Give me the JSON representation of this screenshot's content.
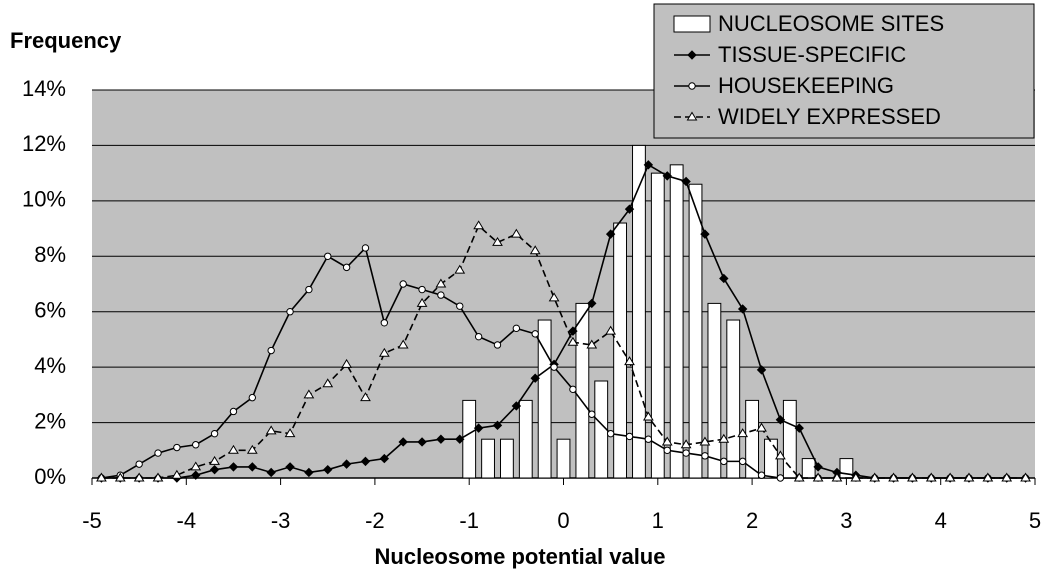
{
  "chart_data": {
    "type": "combo",
    "title": "Frequency",
    "x_label": "Nucleosome potential value",
    "xlim": [
      -5,
      5
    ],
    "xticks": [
      -5,
      -4,
      -3,
      -2,
      -1,
      0,
      1,
      2,
      3,
      4,
      5
    ],
    "ylim": [
      0,
      14
    ],
    "yticks": [
      {
        "value": 0,
        "label": "0%"
      },
      {
        "value": 2,
        "label": "2%"
      },
      {
        "value": 4,
        "label": "4%"
      },
      {
        "value": 6,
        "label": "6%"
      },
      {
        "value": 8,
        "label": "8%"
      },
      {
        "value": 10,
        "label": "10%"
      },
      {
        "value": 12,
        "label": "12%"
      },
      {
        "value": 14,
        "label": "14%"
      }
    ],
    "grid": true,
    "legend": "top-right",
    "x": [
      -4.9,
      -4.7,
      -4.5,
      -4.3,
      -4.1,
      -3.9,
      -3.7,
      -3.5,
      -3.3,
      -3.1,
      -2.9,
      -2.7,
      -2.5,
      -2.3,
      -2.1,
      -1.9,
      -1.7,
      -1.5,
      -1.3,
      -1.1,
      -0.9,
      -0.7,
      -0.5,
      -0.3,
      -0.1,
      0.1,
      0.3,
      0.5,
      0.7,
      0.9,
      1.1,
      1.3,
      1.5,
      1.7,
      1.9,
      2.1,
      2.3,
      2.5,
      2.7,
      2.9,
      3.1,
      3.3,
      3.5,
      3.7,
      3.9,
      4.1,
      4.3,
      4.5,
      4.7,
      4.9
    ],
    "series": [
      {
        "name": "NUCLEOSOME SITES",
        "type": "bar",
        "color": "#ffffff",
        "x": [
          -1.0,
          -0.8,
          -0.6,
          -0.4,
          -0.2,
          0.0,
          0.2,
          0.4,
          0.6,
          0.8,
          1.0,
          1.2,
          1.4,
          1.6,
          1.8,
          2.0,
          2.2,
          2.4,
          2.6,
          2.8,
          3.0
        ],
        "values": [
          2.8,
          1.4,
          1.4,
          2.8,
          5.7,
          1.4,
          6.3,
          3.5,
          9.2,
          12.0,
          11.0,
          11.3,
          10.6,
          6.3,
          5.7,
          2.8,
          1.4,
          2.8,
          0.7,
          0,
          0.7
        ]
      },
      {
        "name": "TISSUE-SPECIFIC",
        "type": "line",
        "color": "#000000",
        "marker": "diamond",
        "marker_fill": "#000000",
        "dashed": false,
        "values": [
          0,
          0,
          0,
          0,
          0,
          0.1,
          0.3,
          0.4,
          0.4,
          0.2,
          0.4,
          0.2,
          0.3,
          0.5,
          0.6,
          0.7,
          1.3,
          1.3,
          1.4,
          1.4,
          1.8,
          1.9,
          2.6,
          3.6,
          4.1,
          5.3,
          6.3,
          8.8,
          9.7,
          11.3,
          10.9,
          10.7,
          8.8,
          7.2,
          6.1,
          3.9,
          2.1,
          1.8,
          0.4,
          0.2,
          0.1,
          0,
          0,
          0,
          0,
          0,
          0,
          0,
          0,
          0
        ]
      },
      {
        "name": "HOUSEKEEPING",
        "type": "line",
        "color": "#000000",
        "marker": "circle",
        "marker_fill": "#ffffff",
        "dashed": false,
        "values": [
          0,
          0.1,
          0.5,
          0.9,
          1.1,
          1.2,
          1.6,
          2.4,
          2.9,
          4.6,
          6.0,
          6.8,
          8.0,
          7.6,
          8.3,
          5.6,
          7.0,
          6.8,
          6.6,
          6.2,
          5.1,
          4.8,
          5.4,
          5.2,
          4.0,
          3.2,
          2.3,
          1.6,
          1.5,
          1.4,
          1.0,
          0.9,
          0.8,
          0.6,
          0.6,
          0.1,
          0,
          0,
          0,
          0,
          0,
          0,
          0,
          0,
          0,
          0,
          0,
          0,
          0,
          0
        ]
      },
      {
        "name": "WIDELY EXPRESSED",
        "type": "line",
        "color": "#000000",
        "marker": "triangle",
        "marker_fill": "#ffffff",
        "dashed": true,
        "values": [
          0,
          0,
          0,
          0,
          0.1,
          0.4,
          0.6,
          1.0,
          1.0,
          1.7,
          1.6,
          3.0,
          3.4,
          4.1,
          2.9,
          4.5,
          4.8,
          6.3,
          7.0,
          7.5,
          9.1,
          8.5,
          8.8,
          8.2,
          6.5,
          4.9,
          4.8,
          5.3,
          4.2,
          2.2,
          1.3,
          1.2,
          1.3,
          1.4,
          1.6,
          1.8,
          0.8,
          0,
          0,
          0,
          0,
          0,
          0,
          0,
          0,
          0,
          0,
          0,
          0,
          0
        ]
      }
    ]
  }
}
